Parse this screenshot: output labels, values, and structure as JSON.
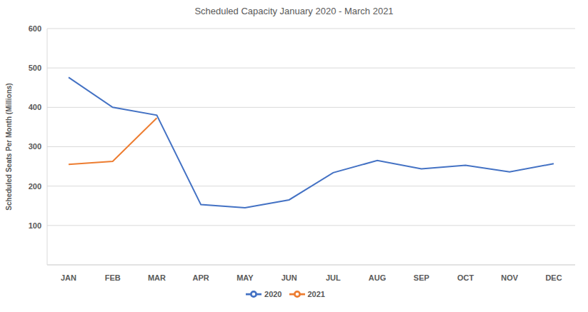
{
  "chart_data": {
    "type": "line",
    "title": "Scheduled Capacity January 2020 - March 2021",
    "y_label": "Scheduled Seats Per Month (Millions)",
    "categories": [
      "JAN",
      "FEB",
      "MAR",
      "APR",
      "MAY",
      "JUN",
      "JUL",
      "AUG",
      "SEP",
      "OCT",
      "NOV",
      "DEC"
    ],
    "series": [
      {
        "name": "2020",
        "color": "#4472c4",
        "values": [
          476,
          400,
          380,
          153,
          145,
          165,
          234,
          265,
          244,
          253,
          236,
          257
        ]
      },
      {
        "name": "2021",
        "color": "#ed7d31",
        "values": [
          255,
          263,
          373,
          null,
          null,
          null,
          null,
          null,
          null,
          null,
          null,
          null
        ]
      }
    ],
    "ylim": [
      0,
      600
    ],
    "yticks": [
      100,
      200,
      300,
      400,
      500,
      600
    ],
    "grid": true,
    "legend": "bottom"
  }
}
